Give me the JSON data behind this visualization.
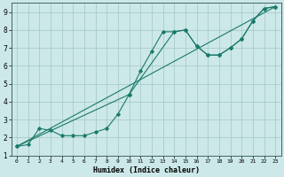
{
  "xlabel": "Humidex (Indice chaleur)",
  "bg_color": "#cce8e8",
  "grid_color": "#aacccc",
  "line_color": "#1a7a6a",
  "xlim": [
    -0.5,
    23.5
  ],
  "ylim": [
    1,
    9.5
  ],
  "xticks": [
    0,
    1,
    2,
    3,
    4,
    5,
    6,
    7,
    8,
    9,
    10,
    11,
    12,
    13,
    14,
    15,
    16,
    17,
    18,
    19,
    20,
    21,
    22,
    23
  ],
  "yticks": [
    1,
    2,
    3,
    4,
    5,
    6,
    7,
    8,
    9
  ],
  "series1_x": [
    0,
    1,
    2,
    3,
    4,
    5,
    6,
    7,
    8,
    9,
    10,
    11,
    12,
    13,
    14,
    15,
    16,
    17,
    18,
    19,
    20,
    21,
    22,
    23
  ],
  "series1_y": [
    1.5,
    1.6,
    2.5,
    2.4,
    2.1,
    2.1,
    2.1,
    2.3,
    2.5,
    3.3,
    4.4,
    5.7,
    6.8,
    7.9,
    7.9,
    8.0,
    7.1,
    6.6,
    6.6,
    7.0,
    7.5,
    8.5,
    9.2,
    9.3
  ],
  "series2_x": [
    0,
    23
  ],
  "series2_y": [
    1.5,
    9.3
  ],
  "series3_x": [
    0,
    10,
    14,
    15,
    16,
    17,
    18,
    19,
    20,
    21,
    22,
    23
  ],
  "series3_y": [
    1.5,
    4.4,
    7.9,
    8.0,
    7.1,
    6.6,
    6.6,
    7.0,
    7.5,
    8.5,
    9.2,
    9.3
  ]
}
